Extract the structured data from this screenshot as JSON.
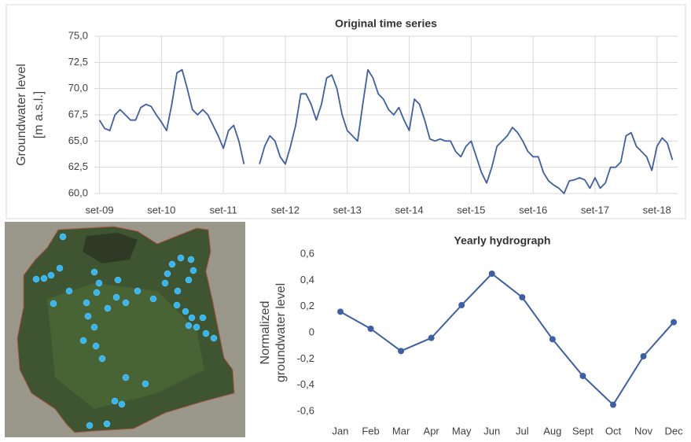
{
  "chart_data": [
    {
      "type": "line",
      "title": "Original time series",
      "ylabel": [
        "Groundwater level",
        "[m a.s.l.]"
      ],
      "x": [
        "2009-09",
        "2009-10",
        "2009-11",
        "2009-12",
        "2010-01",
        "2010-02",
        "2010-03",
        "2010-04",
        "2010-05",
        "2010-06",
        "2010-07",
        "2010-08",
        "2010-09",
        "2010-10",
        "2010-11",
        "2010-12",
        "2011-01",
        "2011-02",
        "2011-03",
        "2011-04",
        "2011-05",
        "2011-06",
        "2011-07",
        "2011-08",
        "2011-09",
        "2011-10",
        "2011-11",
        "2011-12",
        "2012-01",
        "2012-02",
        "2012-03",
        "2012-04",
        "2012-05",
        "2012-06",
        "2012-07",
        "2012-08",
        "2012-09",
        "2012-10",
        "2012-11",
        "2012-12",
        "2013-01",
        "2013-02",
        "2013-03",
        "2013-04",
        "2013-05",
        "2013-06",
        "2013-07",
        "2013-08",
        "2013-09",
        "2013-10",
        "2013-11",
        "2013-12",
        "2014-01",
        "2014-02",
        "2014-03",
        "2014-04",
        "2014-05",
        "2014-06",
        "2014-07",
        "2014-08",
        "2014-09",
        "2014-10",
        "2014-11",
        "2014-12",
        "2015-01",
        "2015-02",
        "2015-03",
        "2015-04",
        "2015-05",
        "2015-06",
        "2015-07",
        "2015-08",
        "2015-09",
        "2015-10",
        "2015-11",
        "2015-12",
        "2016-01",
        "2016-02",
        "2016-03",
        "2016-04",
        "2016-05",
        "2016-06",
        "2016-07",
        "2016-08",
        "2016-09",
        "2016-10",
        "2016-11",
        "2016-12",
        "2017-01",
        "2017-02",
        "2017-03",
        "2017-04",
        "2017-05",
        "2017-06",
        "2017-07",
        "2017-08",
        "2017-09",
        "2017-10",
        "2017-11",
        "2017-12",
        "2018-01",
        "2018-02",
        "2018-03",
        "2018-04",
        "2018-05",
        "2018-06",
        "2018-07",
        "2018-08",
        "2018-09",
        "2018-10",
        "2018-11",
        "2018-12"
      ],
      "values": [
        67.0,
        66.2,
        66.0,
        67.5,
        68.0,
        67.5,
        67.0,
        67.0,
        68.2,
        68.5,
        68.3,
        67.5,
        66.8,
        66.0,
        68.5,
        71.5,
        71.8,
        70.0,
        68.0,
        67.5,
        68.0,
        67.5,
        66.5,
        65.5,
        64.3,
        66.0,
        66.5,
        65.0,
        62.8,
        null,
        null,
        62.8,
        64.5,
        65.5,
        65.0,
        63.5,
        62.8,
        64.5,
        66.5,
        69.5,
        69.5,
        68.5,
        67.0,
        68.5,
        71.0,
        71.3,
        70.0,
        67.5,
        66.0,
        65.5,
        65.0,
        68.5,
        71.8,
        71.0,
        69.5,
        69.0,
        68.0,
        67.5,
        68.2,
        67.0,
        66.0,
        69.0,
        68.5,
        67.0,
        65.2,
        65.0,
        65.2,
        65.0,
        65.0,
        64.0,
        63.5,
        64.5,
        65.0,
        63.5,
        62.0,
        61.0,
        62.5,
        64.5,
        65.0,
        65.5,
        66.3,
        65.8,
        65.0,
        64.0,
        63.5,
        63.5,
        62.0,
        61.2,
        60.8,
        60.5,
        60.0,
        61.2,
        61.3,
        61.5,
        61.3,
        60.5,
        61.5,
        60.5,
        61.0,
        62.5,
        62.5,
        63.0,
        65.5,
        65.8,
        64.5,
        64.0,
        63.5,
        62.2,
        64.5,
        65.3,
        64.8,
        63.2
      ],
      "color": "#3d5fa6",
      "xlim": [
        "2009-08",
        "2019-01"
      ],
      "xticks": [
        {
          "value": "2009-09",
          "label": "set-09"
        },
        {
          "value": "2010-09",
          "label": "set-10"
        },
        {
          "value": "2011-09",
          "label": "set-11"
        },
        {
          "value": "2012-09",
          "label": "set-12"
        },
        {
          "value": "2013-09",
          "label": "set-13"
        },
        {
          "value": "2014-09",
          "label": "set-14"
        },
        {
          "value": "2015-09",
          "label": "set-15"
        },
        {
          "value": "2016-09",
          "label": "set-16"
        },
        {
          "value": "2017-09",
          "label": "set-17"
        },
        {
          "value": "2018-09",
          "label": "set-18"
        }
      ],
      "ylim": [
        60,
        75
      ],
      "yticks": [
        {
          "value": 60,
          "label": "60,0"
        },
        {
          "value": 62.5,
          "label": "62,5"
        },
        {
          "value": 65,
          "label": "65,0"
        },
        {
          "value": 67.5,
          "label": "67,5"
        },
        {
          "value": 70,
          "label": "70,0"
        },
        {
          "value": 72.5,
          "label": "72,5"
        },
        {
          "value": 75,
          "label": "75,0"
        }
      ],
      "grid": true,
      "markers": false
    },
    {
      "type": "line",
      "title": "Yearly hydrograph",
      "ylabel": [
        "Normalized",
        "groundwater level"
      ],
      "categories": [
        "Jan",
        "Feb",
        "Mar",
        "Apr",
        "May",
        "Jun",
        "Jul",
        "Aug",
        "Sept",
        "Oct",
        "Nov",
        "Dec"
      ],
      "values": [
        0.16,
        0.03,
        -0.14,
        -0.04,
        0.21,
        0.45,
        0.27,
        -0.05,
        -0.33,
        -0.55,
        -0.18,
        0.08
      ],
      "color": "#3d5fa6",
      "ylim": [
        -0.6,
        0.6
      ],
      "yticks": [
        {
          "value": -0.6,
          "label": "-0,6"
        },
        {
          "value": -0.4,
          "label": "-0,4"
        },
        {
          "value": -0.2,
          "label": "-0,2"
        },
        0,
        {
          "value": 0.2,
          "label": "0,2"
        },
        {
          "value": 0.4,
          "label": "0,4"
        },
        {
          "value": 0.6,
          "label": "0,6"
        }
      ],
      "grid": false,
      "markers": true
    }
  ]
}
